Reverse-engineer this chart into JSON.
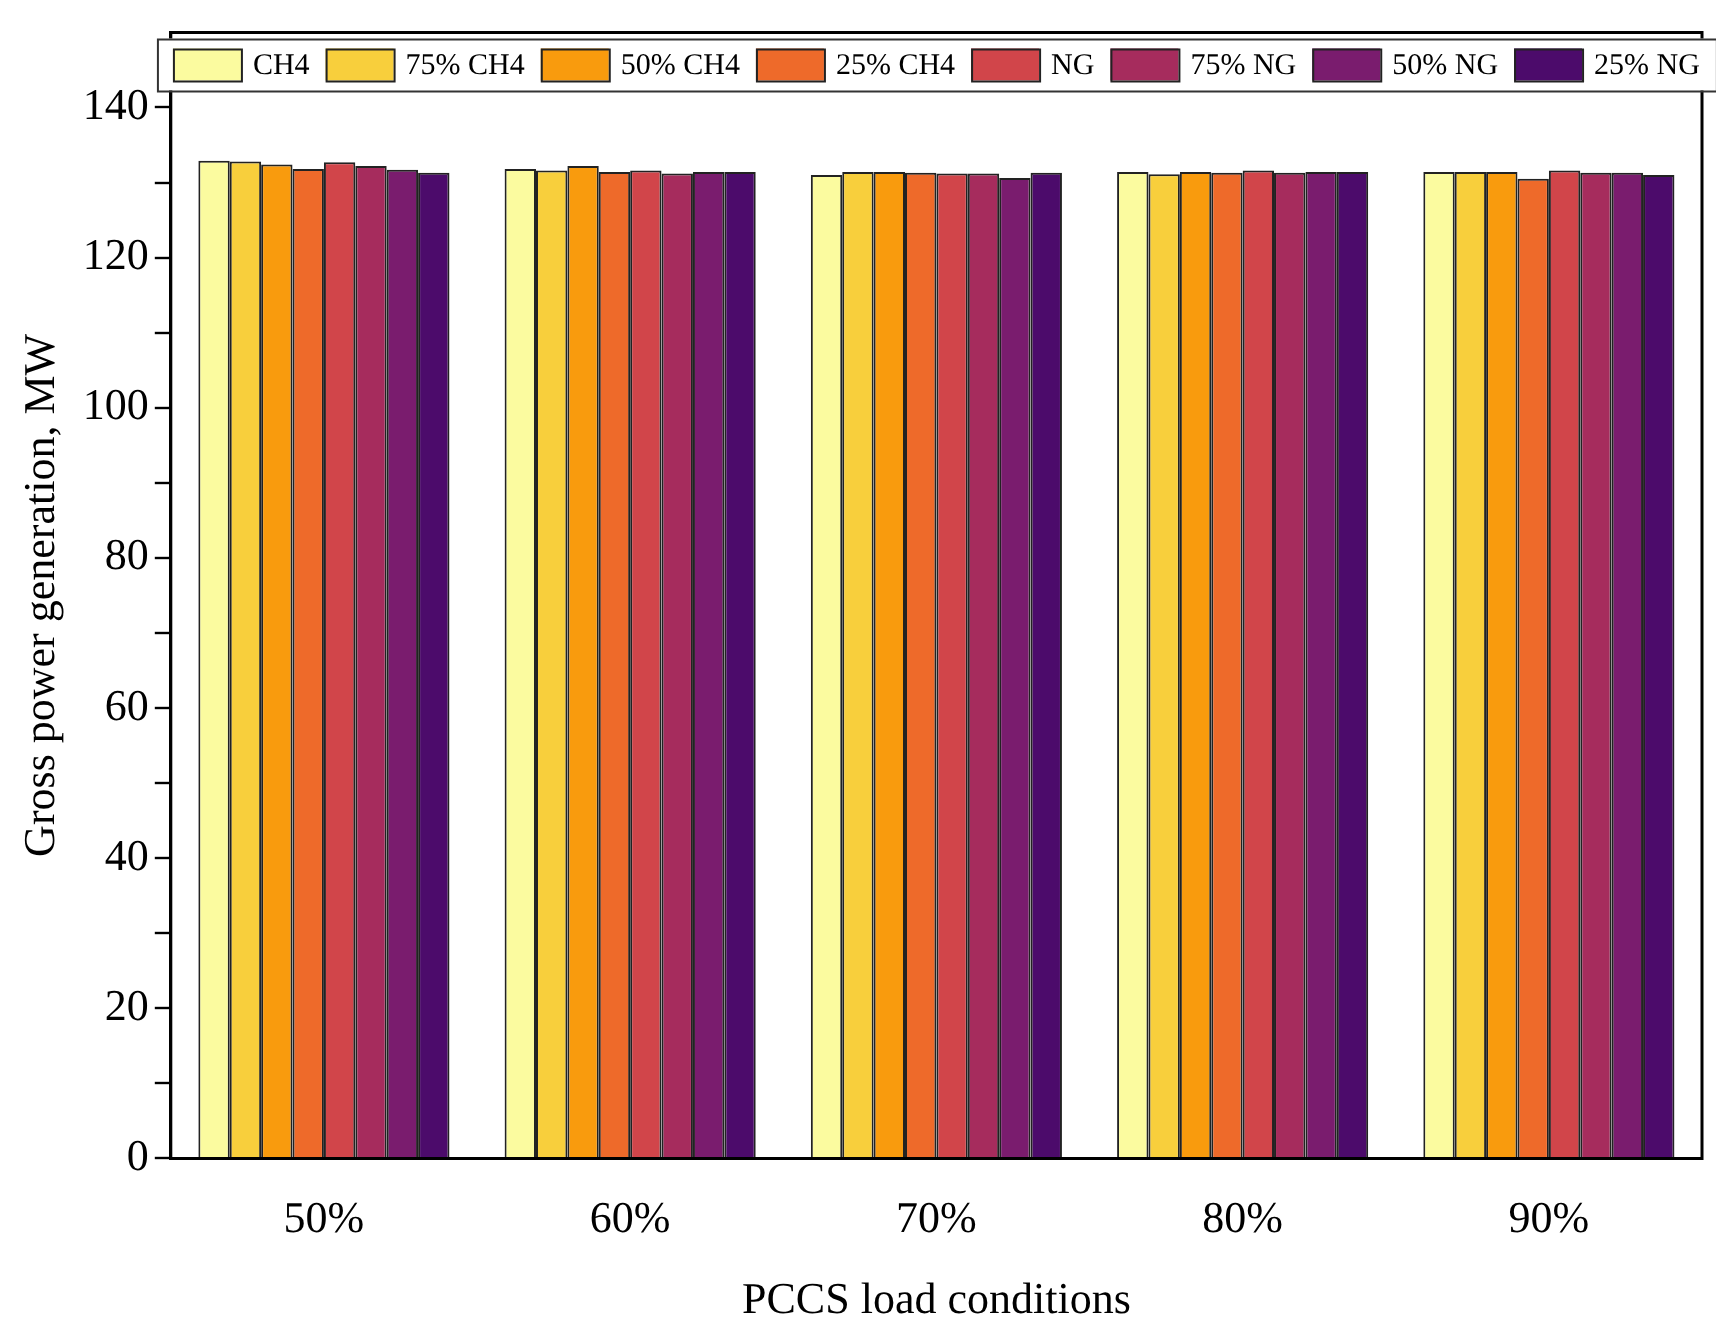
{
  "chart_data": {
    "type": "bar",
    "xlabel": "PCCS load conditions",
    "ylabel": "Gross power generation, MW",
    "categories": [
      "50%",
      "60%",
      "70%",
      "80%",
      "90%"
    ],
    "series": [
      {
        "name": "CH4",
        "color": "#fbfb9f",
        "values": [
          132.9,
          131.8,
          131.0,
          131.4,
          131.4
        ]
      },
      {
        "name": "75% CH4",
        "color": "#f8cf3c",
        "values": [
          132.8,
          131.6,
          131.4,
          131.1,
          131.4
        ]
      },
      {
        "name": "50% CH4",
        "color": "#f99b0d",
        "values": [
          132.4,
          132.2,
          131.4,
          131.4,
          131.4
        ]
      },
      {
        "name": "25% CH4",
        "color": "#ee6a2a",
        "values": [
          131.8,
          131.4,
          131.3,
          131.3,
          130.5
        ]
      },
      {
        "name": "NG",
        "color": "#d1454a",
        "values": [
          132.7,
          131.6,
          131.2,
          131.6,
          131.6
        ]
      },
      {
        "name": "75% NG",
        "color": "#a62c5d",
        "values": [
          132.2,
          131.2,
          131.2,
          131.3,
          131.3
        ]
      },
      {
        "name": "50% NG",
        "color": "#7a1c6e",
        "values": [
          131.7,
          131.4,
          130.6,
          131.4,
          131.3
        ]
      },
      {
        "name": "25% NG",
        "color": "#4c0b6b",
        "values": [
          131.3,
          131.4,
          131.3,
          131.4,
          131.0
        ]
      }
    ],
    "ylim": [
      0,
      150
    ],
    "yticks": [
      0,
      {
        "value": 10,
        "label": null
      },
      20,
      {
        "value": 30,
        "label": null
      },
      40,
      {
        "value": 50,
        "label": null
      },
      60,
      {
        "value": 70,
        "label": null
      },
      80,
      {
        "value": 90,
        "label": null
      },
      100,
      {
        "value": 110,
        "label": null
      },
      120,
      {
        "value": 130,
        "label": null
      },
      140
    ],
    "grid": false,
    "legend": "top"
  }
}
